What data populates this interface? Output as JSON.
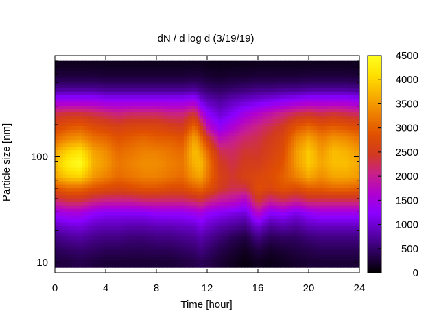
{
  "chart_data": {
    "type": "heatmap",
    "title": "dN / d log d (3/19/19)",
    "xlabel": "Time [hour]",
    "ylabel": "Particle size [nm]",
    "x_scale": "linear",
    "y_scale": "log",
    "xlim": [
      0,
      24
    ],
    "ylim": [
      8,
      900
    ],
    "x_ticks": [
      "0",
      "4",
      "8",
      "12",
      "16",
      "20",
      "24"
    ],
    "x_tick_values": [
      0,
      4,
      8,
      12,
      16,
      20,
      24
    ],
    "y_ticks": [
      "10",
      "100"
    ],
    "y_tick_values": [
      10,
      100
    ],
    "colorbar": {
      "min": 0,
      "max": 4500,
      "tick_labels": [
        "0",
        "500",
        "1000",
        "1500",
        "2000",
        "2500",
        "3000",
        "3500",
        "4000",
        "4500"
      ],
      "tick_values": [
        0,
        500,
        1000,
        1500,
        2000,
        2500,
        3000,
        3500,
        4000,
        4500
      ],
      "colormap": [
        "#000000",
        "#2b0058",
        "#5a00b0",
        "#8a00ff",
        "#b000d0",
        "#c8208a",
        "#d23a20",
        "#e05000",
        "#ee7e00",
        "#f8b000",
        "#ffe000",
        "#ffff20"
      ]
    },
    "time_hours": [
      0,
      1,
      2,
      3,
      4,
      5,
      6,
      7,
      8,
      9,
      10,
      11,
      11.5,
      12,
      13,
      14,
      15,
      16,
      17,
      18,
      19,
      20,
      21,
      22,
      23,
      24
    ],
    "size_nm": [
      10,
      13,
      17,
      22,
      29,
      38,
      50,
      65,
      85,
      110,
      145,
      190,
      250,
      330,
      430,
      560,
      730
    ],
    "values": [
      [
        300,
        400,
        600,
        900,
        1400,
        2100,
        2900,
        3600,
        3800,
        3600,
        3100,
        2700,
        2300,
        1500,
        700,
        300,
        150
      ],
      [
        300,
        450,
        700,
        1000,
        1500,
        2300,
        3100,
        3900,
        4300,
        4000,
        3400,
        2900,
        2400,
        1500,
        700,
        300,
        150
      ],
      [
        350,
        500,
        750,
        1050,
        1500,
        2300,
        3100,
        4000,
        4500,
        4200,
        3500,
        3000,
        2400,
        1500,
        700,
        300,
        150
      ],
      [
        300,
        450,
        650,
        900,
        1300,
        2100,
        2900,
        3500,
        3700,
        3600,
        3200,
        2800,
        2300,
        1500,
        700,
        300,
        150
      ],
      [
        250,
        400,
        600,
        850,
        1200,
        2000,
        2800,
        3300,
        3500,
        3400,
        3100,
        2700,
        2200,
        1400,
        650,
        280,
        140
      ],
      [
        250,
        400,
        600,
        850,
        1200,
        2000,
        2700,
        3100,
        3200,
        3100,
        2900,
        2600,
        2100,
        1400,
        650,
        280,
        140
      ],
      [
        250,
        380,
        550,
        800,
        1200,
        2000,
        2800,
        3200,
        3300,
        3200,
        3000,
        2700,
        2200,
        1400,
        650,
        280,
        140
      ],
      [
        250,
        380,
        550,
        800,
        1200,
        2100,
        2900,
        3300,
        3400,
        3300,
        3100,
        2700,
        2200,
        1400,
        650,
        280,
        140
      ],
      [
        250,
        400,
        600,
        850,
        1300,
        2100,
        2900,
        3300,
        3400,
        3300,
        3000,
        2700,
        2200,
        1400,
        650,
        280,
        140
      ],
      [
        250,
        400,
        600,
        850,
        1300,
        2100,
        2800,
        3200,
        3300,
        3200,
        3000,
        2600,
        2100,
        1400,
        650,
        280,
        140
      ],
      [
        300,
        450,
        650,
        900,
        1300,
        2100,
        2800,
        3100,
        3200,
        3100,
        2900,
        2500,
        2100,
        1400,
        650,
        280,
        140
      ],
      [
        350,
        500,
        700,
        950,
        1400,
        2200,
        3000,
        3500,
        3700,
        3800,
        3600,
        3100,
        2400,
        1500,
        700,
        300,
        150
      ],
      [
        400,
        600,
        800,
        1100,
        1500,
        2300,
        3100,
        3600,
        3800,
        3600,
        3200,
        2600,
        1800,
        1100,
        600,
        300,
        150
      ],
      [
        350,
        500,
        700,
        950,
        1300,
        2100,
        2900,
        3200,
        3300,
        3100,
        2600,
        1800,
        1300,
        900,
        500,
        250,
        120
      ],
      [
        250,
        350,
        550,
        800,
        1200,
        1900,
        2500,
        2600,
        2500,
        2300,
        1800,
        1300,
        1000,
        750,
        450,
        220,
        110
      ],
      [
        150,
        250,
        400,
        700,
        1100,
        1800,
        2300,
        2400,
        2300,
        2200,
        2000,
        1600,
        1200,
        900,
        500,
        250,
        120
      ],
      [
        80,
        150,
        300,
        600,
        1000,
        1600,
        2300,
        2600,
        2500,
        2400,
        2200,
        1900,
        1500,
        1000,
        550,
        260,
        130
      ],
      [
        150,
        300,
        600,
        1000,
        1700,
        2400,
        2800,
        2700,
        2500,
        2400,
        2300,
        2100,
        1700,
        1100,
        600,
        280,
        140
      ],
      [
        100,
        200,
        400,
        700,
        1200,
        2000,
        2700,
        2800,
        2700,
        2600,
        2500,
        2300,
        1900,
        1200,
        600,
        280,
        140
      ],
      [
        150,
        250,
        450,
        800,
        1300,
        2200,
        2900,
        3000,
        2900,
        2800,
        2700,
        2500,
        2100,
        1300,
        650,
        280,
        140
      ],
      [
        200,
        300,
        450,
        700,
        1100,
        2000,
        2800,
        3300,
        3500,
        3500,
        3300,
        2900,
        2300,
        1400,
        650,
        280,
        140
      ],
      [
        250,
        350,
        550,
        850,
        1300,
        2200,
        3000,
        3600,
        3900,
        3900,
        3600,
        3100,
        2400,
        1500,
        700,
        300,
        150
      ],
      [
        250,
        400,
        600,
        900,
        1400,
        2200,
        3000,
        3400,
        3600,
        3500,
        3300,
        2900,
        2300,
        1500,
        700,
        300,
        150
      ],
      [
        250,
        400,
        600,
        900,
        1400,
        2200,
        3100,
        3600,
        3800,
        3800,
        3500,
        3000,
        2400,
        1500,
        700,
        300,
        150
      ],
      [
        250,
        400,
        600,
        900,
        1400,
        2200,
        3100,
        3600,
        3800,
        3700,
        3400,
        2900,
        2300,
        1500,
        700,
        300,
        150
      ],
      [
        250,
        400,
        600,
        900,
        1400,
        2200,
        3000,
        3500,
        3600,
        3500,
        3200,
        2800,
        2200,
        1400,
        650,
        280,
        140
      ]
    ]
  }
}
